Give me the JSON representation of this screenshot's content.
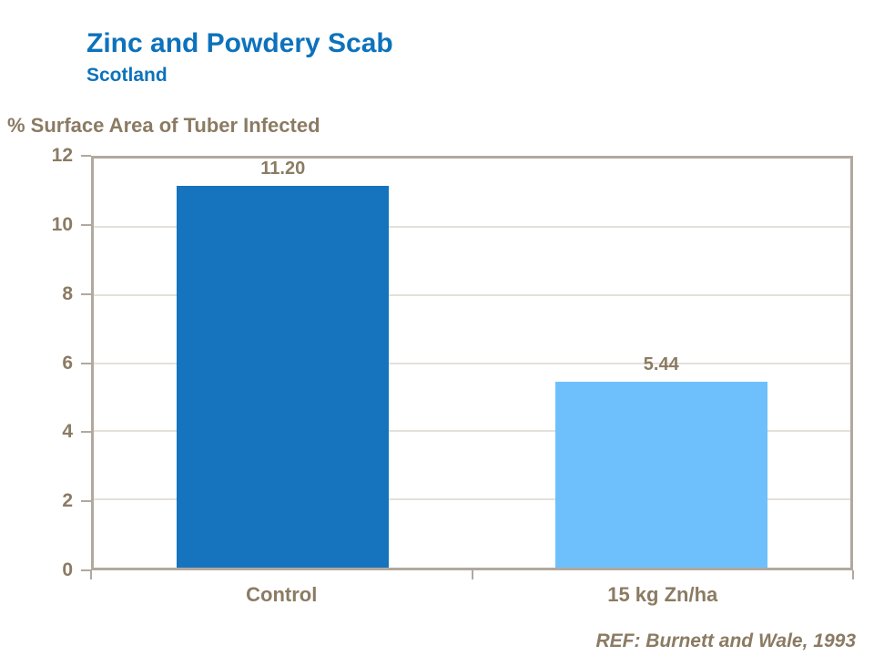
{
  "header": {
    "title": "Zinc and Powdery Scab",
    "subtitle": "Scotland"
  },
  "footer": {
    "reference": "REF: Burnett and Wale, 1993"
  },
  "colors": {
    "title_blue": "#0d72bc",
    "text_brown": "#8b7b63",
    "axis_border": "#b2a89e",
    "gridline": "#c9c1b7",
    "bar_control": "#1673bd",
    "bar_zinc": "#6dc0fc"
  },
  "chart_data": {
    "type": "bar",
    "title": "Zinc and Powdery Scab",
    "subtitle": "Scotland",
    "ylabel": "% Surface Area of Tuber Infected",
    "xlabel": "",
    "categories": [
      "Control",
      "15 kg Zn/ha"
    ],
    "values": [
      11.2,
      5.44
    ],
    "value_labels": [
      "11.20",
      "5.44"
    ],
    "bar_colors": [
      "#1673bd",
      "#6dc0fc"
    ],
    "ylim": [
      0,
      12
    ],
    "yticks": [
      0,
      2,
      4,
      6,
      8,
      10,
      12
    ],
    "grid": true,
    "legend_position": "none",
    "annotation": "REF: Burnett and Wale, 1993"
  }
}
